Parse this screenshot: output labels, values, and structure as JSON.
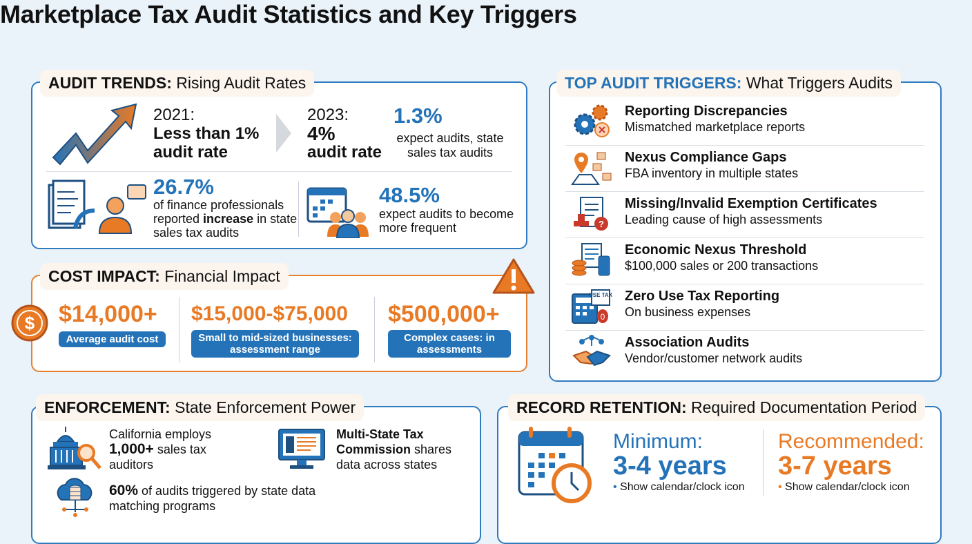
{
  "title": "Marketplace Tax Audit Statistics and Key Triggers",
  "audit_trends": {
    "label_bold": "AUDIT TRENDS:",
    "label_rest": " Rising Audit Rates",
    "y2021_label": "2021:",
    "y2021_value": "Less than 1%",
    "y2021_unit": "audit rate",
    "y2023_label": "2023:",
    "y2023_value": "4%",
    "y2023_unit": "audit rate",
    "stat1_value": "1.3%",
    "stat1_text": "expect audits, state sales tax audits",
    "stat2_value": "26.7%",
    "stat2_text_a": "of finance professionals reported ",
    "stat2_text_bold": "increase",
    "stat2_text_b": " in state sales tax audits",
    "stat3_value": "48.5%",
    "stat3_text": "expect audits to become more frequent"
  },
  "cost_impact": {
    "label_bold": "COST IMPACT:",
    "label_rest": " Financial Impact",
    "items": [
      {
        "value": "$14,000+",
        "caption": "Average audit cost"
      },
      {
        "value": "$15,000-$75,000",
        "caption": "Small to mid-sized businesses: assessment range"
      },
      {
        "value": "$500,000+",
        "caption": "Complex cases: in assessments"
      }
    ]
  },
  "triggers": {
    "label_bold": "TOP AUDIT TRIGGERS:",
    "label_rest": " What Triggers Audits",
    "items": [
      {
        "title": "Reporting Discrepancies",
        "sub": "Mismatched marketplace reports",
        "icon": "gears-icon"
      },
      {
        "title": "Nexus Compliance Gaps",
        "sub": "FBA inventory in multiple states",
        "icon": "map-pin-boxes-icon"
      },
      {
        "title": "Missing/Invalid Exemption Certificates",
        "sub": "Leading cause of high assessments",
        "icon": "certificate-stamp-icon"
      },
      {
        "title": "Economic Nexus Threshold",
        "sub": "$100,000 sales or 200 transactions",
        "icon": "coins-phone-icon"
      },
      {
        "title": "Zero Use Tax Reporting",
        "sub": "On business expenses",
        "icon": "calculator-tax-icon",
        "icon_text": "USE TAX"
      },
      {
        "title": "Association Audits",
        "sub": "Vendor/customer network audits",
        "icon": "handshake-network-icon"
      }
    ]
  },
  "enforcement": {
    "label_bold": "ENFORCEMENT:",
    "label_rest": " State Enforcement Power",
    "ca_a": "California employs",
    "ca_bold": "1,000+",
    "ca_b": " sales tax auditors",
    "mtc_bold": "Multi-State Tax Commission",
    "mtc_rest": " shares data across states",
    "pct_bold": "60%",
    "pct_rest": " of audits triggered by state data matching programs"
  },
  "retention": {
    "label_bold": "RECORD RETENTION:",
    "label_rest": " Required Documentation Period",
    "min_label": "Minimum:",
    "min_value": "3-4 years",
    "min_note": "Show calendar/clock icon",
    "rec_label": "Recommended:",
    "rec_value": "3-7 years",
    "rec_note": "Show calendar/clock icon"
  },
  "colors": {
    "blue": "#2473b8",
    "orange": "#e87a25",
    "background": "#eaf2fa"
  }
}
